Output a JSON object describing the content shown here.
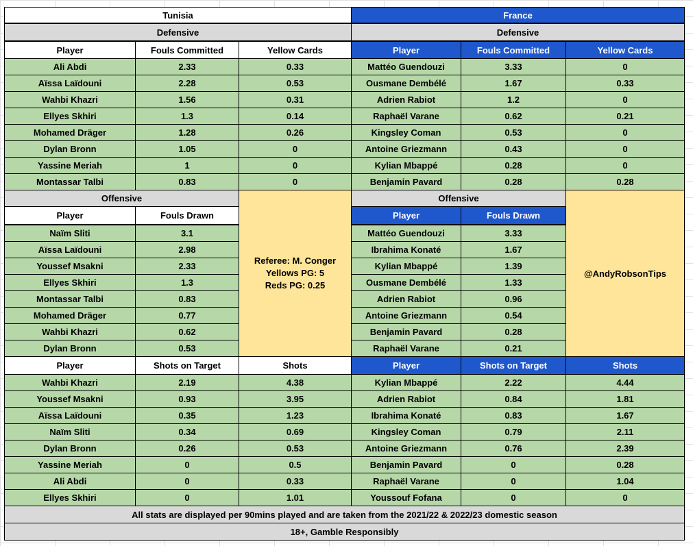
{
  "tunisia": {
    "team": "Tunisia",
    "defensive": {
      "title": "Defensive",
      "headers": [
        "Player",
        "Fouls Committed",
        "Yellow Cards"
      ],
      "rows": [
        [
          "Ali Abdi",
          "2.33",
          "0.33"
        ],
        [
          "Aïssa Laïdouni",
          "2.28",
          "0.53"
        ],
        [
          "Wahbi Khazri",
          "1.56",
          "0.31"
        ],
        [
          "Ellyes Skhiri",
          "1.3",
          "0.14"
        ],
        [
          "Mohamed Dräger",
          "1.28",
          "0.26"
        ],
        [
          "Dylan Bronn",
          "1.05",
          "0"
        ],
        [
          "Yassine Meriah",
          "1",
          "0"
        ],
        [
          "Montassar Talbi",
          "0.83",
          "0"
        ]
      ]
    },
    "offensive": {
      "title": "Offensive",
      "headers": [
        "Player",
        "Fouls Drawn"
      ],
      "rows": [
        [
          "Naïm Sliti",
          "3.1"
        ],
        [
          "Aïssa Laïdouni",
          "2.98"
        ],
        [
          "Youssef Msakni",
          "2.33"
        ],
        [
          "Ellyes Skhiri",
          "1.3"
        ],
        [
          "Montassar Talbi",
          "0.83"
        ],
        [
          "Mohamed Dräger",
          "0.77"
        ],
        [
          "Wahbi Khazri",
          "0.62"
        ],
        [
          "Dylan Bronn",
          "0.53"
        ]
      ]
    },
    "shots": {
      "headers": [
        "Player",
        "Shots on Target",
        "Shots"
      ],
      "rows": [
        [
          "Wahbi Khazri",
          "2.19",
          "4.38"
        ],
        [
          "Youssef Msakni",
          "0.93",
          "3.95"
        ],
        [
          "Aïssa Laïdouni",
          "0.35",
          "1.23"
        ],
        [
          "Naïm Sliti",
          "0.34",
          "0.69"
        ],
        [
          "Dylan Bronn",
          "0.26",
          "0.53"
        ],
        [
          "Yassine Meriah",
          "0",
          "0.5"
        ],
        [
          "Ali Abdi",
          "0",
          "0.33"
        ],
        [
          "Ellyes Skhiri",
          "0",
          "1.01"
        ]
      ]
    }
  },
  "france": {
    "team": "France",
    "defensive": {
      "title": "Defensive",
      "headers": [
        "Player",
        "Fouls Committed",
        "Yellow Cards"
      ],
      "rows": [
        [
          "Mattéo Guendouzi",
          "3.33",
          "0"
        ],
        [
          "Ousmane Dembélé",
          "1.67",
          "0.33"
        ],
        [
          "Adrien Rabiot",
          "1.2",
          "0"
        ],
        [
          "Raphaël Varane",
          "0.62",
          "0.21"
        ],
        [
          "Kingsley Coman",
          "0.53",
          "0"
        ],
        [
          "Antoine Griezmann",
          "0.43",
          "0"
        ],
        [
          "Kylian Mbappé",
          "0.28",
          "0"
        ],
        [
          "Benjamin Pavard",
          "0.28",
          "0.28"
        ]
      ]
    },
    "offensive": {
      "title": "Offensive",
      "headers": [
        "Player",
        "Fouls Drawn"
      ],
      "rows": [
        [
          "Mattéo Guendouzi",
          "3.33"
        ],
        [
          "Ibrahima Konaté",
          "1.67"
        ],
        [
          "Kylian Mbappé",
          "1.39"
        ],
        [
          "Ousmane Dembélé",
          "1.33"
        ],
        [
          "Adrien Rabiot",
          "0.96"
        ],
        [
          "Antoine Griezmann",
          "0.54"
        ],
        [
          "Benjamin Pavard",
          "0.28"
        ],
        [
          "Raphaël Varane",
          "0.21"
        ]
      ]
    },
    "shots": {
      "headers": [
        "Player",
        "Shots on Target",
        "Shots"
      ],
      "rows": [
        [
          "Kylian Mbappé",
          "2.22",
          "4.44"
        ],
        [
          "Adrien Rabiot",
          "0.84",
          "1.81"
        ],
        [
          "Ibrahima Konaté",
          "0.83",
          "1.67"
        ],
        [
          "Kingsley Coman",
          "0.79",
          "2.11"
        ],
        [
          "Antoine Griezmann",
          "0.76",
          "2.39"
        ],
        [
          "Benjamin Pavard",
          "0",
          "0.28"
        ],
        [
          "Raphaël Varane",
          "0",
          "1.04"
        ],
        [
          "Youssouf Fofana",
          "0",
          "0"
        ]
      ]
    }
  },
  "referee": {
    "line1": "Referee: M. Conger",
    "line2": "Yellows PG: 5",
    "line3": "Reds PG: 0.25"
  },
  "handle": "@AndyRobsonTips",
  "footer": {
    "note": "All stats are displayed per 90mins played and are taken from the 2021/22 & 2022/23 domestic season",
    "disclaimer": "18+, Gamble Responsibly"
  },
  "colors": {
    "france_header": "#1f57cc",
    "section_gray": "#d9d9d9",
    "data_green": "#b6d7a8",
    "info_yellow": "#ffe599"
  }
}
